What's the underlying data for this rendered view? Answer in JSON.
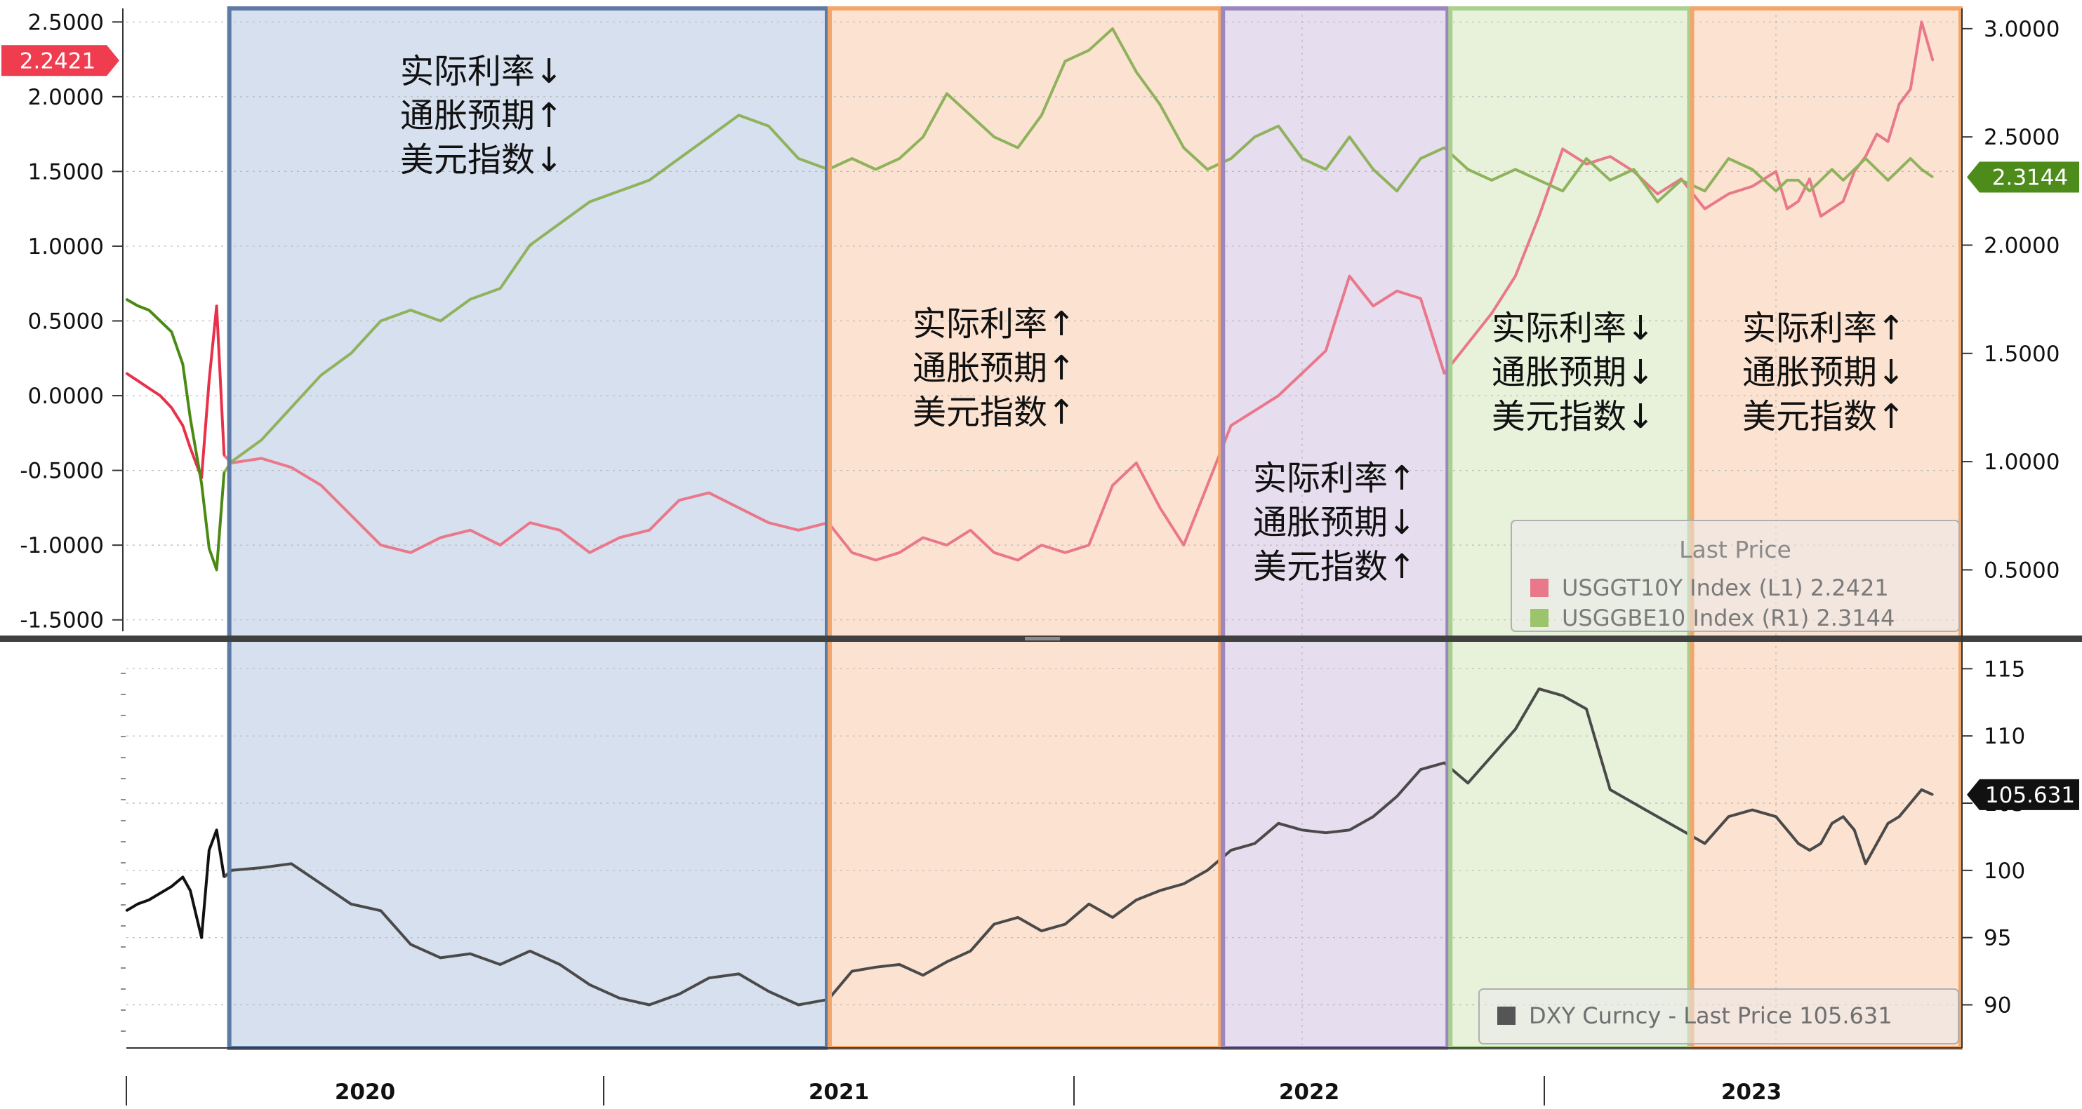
{
  "chart_data": [
    {
      "type": "line",
      "panel": "top",
      "title": "",
      "xlabel": "",
      "x_ticks": [
        "2020",
        "2021",
        "2022",
        "2023"
      ],
      "left_axis": {
        "ylim": [
          -1.6,
          2.6
        ],
        "ticks": [
          "2.5000",
          "2.0000",
          "1.5000",
          "1.0000",
          "0.5000",
          "0.0000",
          "-0.5000",
          "-1.0000",
          "-1.5000"
        ]
      },
      "right_axis": {
        "ylim": [
          0.2,
          3.1
        ],
        "ticks": [
          "3.0000",
          "2.5000",
          "2.0000",
          "1.5000",
          "1.0000",
          "0.5000"
        ]
      },
      "series": [
        {
          "name": "USGGT10Y Index (L1)",
          "axis": "left",
          "color": "#e8304a",
          "faded_color": "#e9788a",
          "last_value": "2.2421",
          "x": [
            2019.72,
            2019.75,
            2019.78,
            2019.81,
            2019.84,
            2019.87,
            2019.89,
            2019.92,
            2019.94,
            2019.96,
            2019.98,
            2020.0,
            2020.05,
            2020.1,
            2020.15,
            2020.2,
            2020.25,
            2020.3,
            2020.35,
            2020.4,
            2020.45,
            2020.5,
            2020.55,
            2020.6,
            2020.65,
            2020.7,
            2020.75,
            2020.8,
            2020.85,
            2020.9,
            2020.95,
            2021.0,
            2021.05,
            2021.1,
            2021.15,
            2021.2,
            2021.25,
            2021.3,
            2021.35,
            2021.4,
            2021.45,
            2021.5,
            2021.55,
            2021.6,
            2021.65,
            2021.7,
            2021.75,
            2021.8,
            2021.85,
            2021.9,
            2021.95,
            2022.0,
            2022.05,
            2022.1,
            2022.15,
            2022.2,
            2022.25,
            2022.3,
            2022.35,
            2022.4,
            2022.45,
            2022.5,
            2022.55,
            2022.6,
            2022.65,
            2022.7,
            2022.75,
            2022.8,
            2022.85,
            2022.9,
            2022.95,
            2023.0,
            2023.05,
            2023.1,
            2023.15,
            2023.2,
            2023.25,
            2023.3,
            2023.35,
            2023.4,
            2023.45,
            2023.5,
            2023.55,
            2023.6,
            2023.65,
            2023.7
          ],
          "values": [
            0.15,
            0.1,
            0.05,
            0.0,
            -0.08,
            -0.2,
            -0.35,
            -0.55,
            0.1,
            0.6,
            -0.4,
            -0.45,
            -0.42,
            -0.48,
            -0.6,
            -0.8,
            -1.0,
            -1.05,
            -0.95,
            -0.9,
            -1.0,
            -0.85,
            -0.9,
            -1.05,
            -0.95,
            -0.9,
            -0.7,
            -0.65,
            -0.75,
            -0.85,
            -0.9,
            -0.85,
            -1.05,
            -1.1,
            -1.05,
            -0.95,
            -1.0,
            -0.9,
            -1.05,
            -1.1,
            -1.0,
            -1.05,
            -1.0,
            -0.6,
            -0.45,
            -0.75,
            -1.0,
            -0.6,
            -0.2,
            -0.1,
            0.0,
            0.15,
            0.3,
            0.8,
            0.6,
            0.7,
            0.65,
            0.15,
            0.35,
            0.55,
            0.8,
            1.2,
            1.65,
            1.55,
            1.6,
            1.5,
            1.35,
            1.45,
            1.25,
            1.35,
            1.4,
            1.5,
            1.25,
            1.3,
            1.45,
            1.2,
            1.25,
            1.3,
            1.5,
            1.6,
            1.75,
            1.7,
            1.95,
            2.05,
            2.5,
            2.2421
          ]
        },
        {
          "name": "USGGBE10 Index (R1)",
          "axis": "right",
          "color": "#4a8a14",
          "faded_color": "#8fb25c",
          "last_value": "2.3144",
          "x": [
            2019.72,
            2019.75,
            2019.78,
            2019.81,
            2019.84,
            2019.87,
            2019.89,
            2019.92,
            2019.94,
            2019.96,
            2019.98,
            2020.0,
            2020.05,
            2020.1,
            2020.15,
            2020.2,
            2020.25,
            2020.3,
            2020.35,
            2020.4,
            2020.45,
            2020.5,
            2020.55,
            2020.6,
            2020.65,
            2020.7,
            2020.75,
            2020.8,
            2020.85,
            2020.9,
            2020.95,
            2021.0,
            2021.05,
            2021.1,
            2021.15,
            2021.2,
            2021.25,
            2021.3,
            2021.35,
            2021.4,
            2021.45,
            2021.5,
            2021.55,
            2021.6,
            2021.65,
            2021.7,
            2021.75,
            2021.8,
            2021.85,
            2021.9,
            2021.95,
            2022.0,
            2022.05,
            2022.1,
            2022.15,
            2022.2,
            2022.25,
            2022.3,
            2022.35,
            2022.4,
            2022.45,
            2022.5,
            2022.55,
            2022.6,
            2022.65,
            2022.7,
            2022.75,
            2022.8,
            2022.85,
            2022.9,
            2022.95,
            2023.0,
            2023.05,
            2023.1,
            2023.15,
            2023.2,
            2023.25,
            2023.3,
            2023.35,
            2023.4,
            2023.45,
            2023.5,
            2023.55,
            2023.6,
            2023.65,
            2023.7
          ],
          "values": [
            1.75,
            1.72,
            1.7,
            1.65,
            1.6,
            1.45,
            1.2,
            0.9,
            0.6,
            0.5,
            0.95,
            1.0,
            1.1,
            1.25,
            1.4,
            1.5,
            1.65,
            1.7,
            1.65,
            1.75,
            1.8,
            2.0,
            2.1,
            2.2,
            2.25,
            2.3,
            2.4,
            2.5,
            2.6,
            2.55,
            2.4,
            2.35,
            2.4,
            2.35,
            2.4,
            2.5,
            2.7,
            2.6,
            2.5,
            2.45,
            2.6,
            2.85,
            2.9,
            3.0,
            2.8,
            2.65,
            2.45,
            2.35,
            2.4,
            2.5,
            2.55,
            2.4,
            2.35,
            2.5,
            2.35,
            2.25,
            2.4,
            2.45,
            2.35,
            2.3,
            2.35,
            2.3,
            2.25,
            2.4,
            2.3,
            2.35,
            2.2,
            2.3,
            2.25,
            2.4,
            2.35,
            2.25,
            2.3,
            2.3,
            2.25,
            2.3,
            2.35,
            2.3,
            2.35,
            2.4,
            2.35,
            2.3,
            2.35,
            2.4,
            2.35,
            2.3144
          ]
        }
      ],
      "legend": {
        "title": "Last Price",
        "placement": "bottom-right",
        "entries": [
          {
            "label": "USGGT10Y Index  (L1)  2.2421",
            "color": "#e9788a"
          },
          {
            "label": "USGGBE10 Index  (R1)  2.3144",
            "color": "#9cc46a"
          }
        ]
      }
    },
    {
      "type": "line",
      "panel": "bottom",
      "title": "",
      "right_axis": {
        "ylim": [
          87,
          117
        ],
        "ticks": [
          "115",
          "110",
          "105",
          "100",
          "95",
          "90"
        ]
      },
      "series": [
        {
          "name": "DXY Curncy",
          "color": "#111111",
          "faded_color": "#4a4a4a",
          "last_value": "105.631",
          "x": [
            2019.72,
            2019.75,
            2019.78,
            2019.81,
            2019.84,
            2019.87,
            2019.89,
            2019.92,
            2019.94,
            2019.96,
            2019.98,
            2020.0,
            2020.05,
            2020.1,
            2020.15,
            2020.2,
            2020.25,
            2020.3,
            2020.35,
            2020.4,
            2020.45,
            2020.5,
            2020.55,
            2020.6,
            2020.65,
            2020.7,
            2020.75,
            2020.8,
            2020.85,
            2020.9,
            2020.95,
            2021.0,
            2021.05,
            2021.1,
            2021.15,
            2021.2,
            2021.25,
            2021.3,
            2021.35,
            2021.4,
            2021.45,
            2021.5,
            2021.55,
            2021.6,
            2021.65,
            2021.7,
            2021.75,
            2021.8,
            2021.85,
            2021.9,
            2021.95,
            2022.0,
            2022.05,
            2022.1,
            2022.15,
            2022.2,
            2022.25,
            2022.3,
            2022.35,
            2022.4,
            2022.45,
            2022.5,
            2022.55,
            2022.6,
            2022.65,
            2022.7,
            2022.75,
            2022.8,
            2022.85,
            2022.9,
            2022.95,
            2023.0,
            2023.05,
            2023.1,
            2023.15,
            2023.2,
            2023.25,
            2023.3,
            2023.35,
            2023.4,
            2023.45,
            2023.5,
            2023.55,
            2023.6,
            2023.65,
            2023.7
          ],
          "values": [
            97.0,
            97.5,
            97.8,
            98.3,
            98.8,
            99.5,
            98.5,
            95.0,
            101.5,
            103.0,
            99.5,
            100.0,
            100.2,
            100.5,
            99.0,
            97.5,
            97.0,
            94.5,
            93.5,
            93.8,
            93.0,
            94.0,
            93.0,
            91.5,
            90.5,
            90.0,
            90.8,
            92.0,
            92.3,
            91.0,
            90.0,
            90.4,
            92.5,
            92.8,
            93.0,
            92.2,
            93.2,
            94.0,
            96.0,
            96.5,
            95.5,
            96.0,
            97.5,
            96.5,
            97.8,
            98.5,
            99.0,
            100.0,
            101.5,
            102.0,
            103.5,
            103.0,
            102.8,
            103.0,
            104.0,
            105.5,
            107.5,
            108.0,
            106.5,
            108.5,
            110.5,
            113.5,
            113.0,
            112.0,
            106.0,
            105.0,
            104.0,
            103.0,
            102.0,
            104.0,
            104.5,
            104.0,
            103.0,
            102.0,
            101.5,
            102.0,
            103.5,
            104.0,
            103.0,
            100.5,
            102.0,
            103.5,
            104.0,
            105.0,
            106.0,
            105.631
          ]
        }
      ],
      "legend": {
        "placement": "bottom-right",
        "entries": [
          {
            "label": "DXY Curncy  -  Last Price  105.631",
            "color": "#555555"
          }
        ]
      }
    }
  ],
  "regimes": [
    {
      "x_start": 2019.99,
      "x_end": 2021.0,
      "fill": "#c9d5ea",
      "border": "#5d7aa5",
      "lines": [
        "实际利率↓",
        "通胀预期↑",
        "美元指数↓"
      ]
    },
    {
      "x_start": 2021.0,
      "x_end": 2021.83,
      "fill": "#fbd9c1",
      "border": "#f2a66a",
      "lines": [
        "实际利率↑",
        "通胀预期↑",
        "美元指数↑"
      ]
    },
    {
      "x_start": 2021.83,
      "x_end": 2022.31,
      "fill": "#ddd1e8",
      "border": "#9b86bd",
      "lines": [
        "实际利率↑",
        "通胀预期↓",
        "美元指数↑"
      ]
    },
    {
      "x_start": 2022.31,
      "x_end": 2022.82,
      "fill": "#e0edcf",
      "border": "#a9d08e",
      "lines": [
        "实际利率↓",
        "通胀预期↓",
        "美元指数↓"
      ]
    },
    {
      "x_start": 2022.82,
      "x_end": 2023.83,
      "fill": "#fbd9c1",
      "border": "#f2a66a",
      "lines": [
        "实际利率↑",
        "通胀预期↓",
        "美元指数↑"
      ]
    }
  ]
}
